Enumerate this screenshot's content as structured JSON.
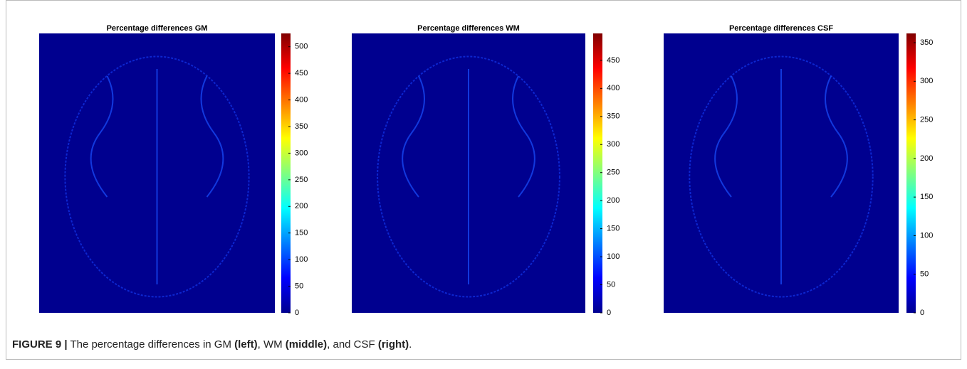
{
  "chart_data": [
    {
      "type": "heatmap",
      "title": "Percentage differences GM",
      "zlim": [
        0,
        525
      ],
      "zticks": [
        0,
        50,
        100,
        150,
        200,
        250,
        300,
        350,
        400,
        450,
        500
      ],
      "colormap": "jet"
    },
    {
      "type": "heatmap",
      "title": "Percentage differences WM",
      "zlim": [
        0,
        498
      ],
      "zticks": [
        0,
        50,
        100,
        150,
        200,
        250,
        300,
        350,
        400,
        450
      ],
      "colormap": "jet"
    },
    {
      "type": "heatmap",
      "title": "Percentage differences CSF",
      "zlim": [
        0,
        362
      ],
      "zticks": [
        0,
        50,
        100,
        150,
        200,
        250,
        300,
        350
      ],
      "colormap": "jet"
    }
  ],
  "caption": {
    "label": "FIGURE 9 |",
    "segments": [
      {
        "text": " The percentage differences in GM ",
        "bold": false
      },
      {
        "text": "(left)",
        "bold": true
      },
      {
        "text": ", WM ",
        "bold": false
      },
      {
        "text": "(middle)",
        "bold": true
      },
      {
        "text": ", and CSF ",
        "bold": false
      },
      {
        "text": "(right)",
        "bold": true
      },
      {
        "text": ".",
        "bold": false
      }
    ]
  }
}
